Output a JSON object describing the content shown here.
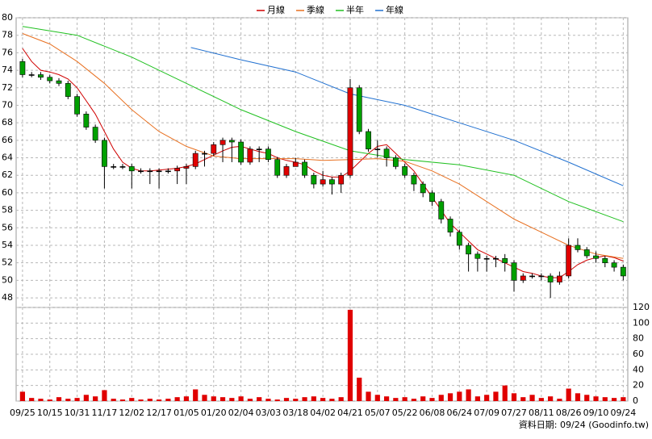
{
  "chart_data": {
    "type": "candlestick",
    "categories": [
      "09/25",
      null,
      null,
      "10/15",
      null,
      null,
      "10/31",
      null,
      null,
      "11/17",
      null,
      null,
      "12/02",
      null,
      null,
      "12/17",
      null,
      null,
      "01/05",
      null,
      null,
      "01/20",
      null,
      null,
      "02/04",
      null,
      null,
      "03/03",
      null,
      null,
      "03/18",
      null,
      null,
      "04/02",
      null,
      null,
      "04/21",
      null,
      null,
      "05/07",
      null,
      null,
      "05/22",
      null,
      null,
      "06/08",
      null,
      null,
      "06/24",
      null,
      null,
      "07/09",
      null,
      null,
      "07/27",
      null,
      null,
      "08/11",
      null,
      null,
      "08/26",
      null,
      null,
      "09/10",
      null,
      null,
      "09/24"
    ],
    "open": [
      75,
      73.5,
      73.5,
      73.2,
      72.8,
      72.5,
      71,
      69,
      67.5,
      66,
      63,
      63,
      63,
      62.5,
      62.5,
      62.5,
      62.5,
      62.5,
      62.8,
      63,
      64.5,
      64.5,
      65.5,
      66,
      65.8,
      63.5,
      65,
      65,
      63.8,
      62,
      63,
      63.5,
      62,
      61,
      61.5,
      61,
      62,
      72,
      67,
      65,
      65,
      64,
      63,
      62,
      61,
      60,
      59,
      57,
      55.5,
      54,
      53,
      52.5,
      52.5,
      52.5,
      52,
      50,
      50.5,
      50.5,
      50.5,
      49.8,
      50.5,
      54,
      53.5,
      52.8,
      52.5,
      52,
      51.5
    ],
    "high": [
      75.3,
      73.8,
      73.8,
      73.5,
      73.1,
      72.8,
      71.3,
      69.3,
      67.8,
      66.3,
      63.3,
      63.3,
      63.3,
      62.8,
      62.8,
      62.8,
      62.8,
      63.1,
      63.3,
      64.8,
      64.8,
      65.8,
      66.3,
      66.3,
      66.1,
      65.3,
      65.3,
      65.3,
      64.1,
      63.3,
      64,
      63.8,
      62.3,
      62.5,
      61.8,
      62.3,
      73,
      72.3,
      67.3,
      66,
      65.3,
      64.3,
      63.3,
      62.3,
      61.3,
      60.3,
      59.3,
      57.3,
      55.8,
      54.3,
      53.3,
      52.8,
      52.8,
      53,
      52.3,
      50.8,
      50.8,
      50.8,
      50.8,
      51,
      54.8,
      54.8,
      53.8,
      53.3,
      52.8,
      52.3,
      51.8
    ],
    "low": [
      73.2,
      73.2,
      72.9,
      72.5,
      72.2,
      70.7,
      68.7,
      67.2,
      65.7,
      60.5,
      62.7,
      62.7,
      60.5,
      62.2,
      61,
      60.5,
      62.2,
      61,
      61,
      62.7,
      63,
      64.2,
      63.5,
      63.5,
      63.2,
      63.2,
      63.5,
      63.5,
      61.7,
      61.7,
      63,
      61.7,
      60.5,
      60.7,
      59.8,
      60,
      61.7,
      66.7,
      64.7,
      64,
      63,
      62.7,
      61.7,
      60.2,
      59.5,
      58.5,
      56.5,
      55,
      53.5,
      51,
      51,
      51,
      51.5,
      51,
      48.7,
      49.7,
      50.2,
      50,
      48,
      49.5,
      50.2,
      53.2,
      52.5,
      52,
      51.5,
      51,
      50
    ],
    "close": [
      73.5,
      73.5,
      73.2,
      72.8,
      72.5,
      71,
      69,
      67.5,
      66,
      63,
      63,
      63,
      62.5,
      62.5,
      62.5,
      62.5,
      62.5,
      62.8,
      63,
      64.5,
      64.5,
      65.5,
      66,
      65.8,
      63.5,
      65,
      65,
      63.8,
      62,
      63,
      63.5,
      62,
      61,
      61.5,
      61,
      62,
      72,
      67,
      65,
      65,
      64,
      63,
      62,
      61,
      60,
      59,
      57,
      55.5,
      54,
      53,
      52.5,
      52.5,
      52.5,
      52,
      50,
      50.5,
      50.5,
      50.5,
      49.8,
      50.5,
      54,
      53.5,
      52.8,
      52.5,
      52,
      51.5,
      50.5
    ],
    "up_color": "#e00000",
    "down_color": "#00a000",
    "xlim": [
      -0.7,
      66.5
    ],
    "ylim": [
      46.9,
      80
    ],
    "yticks": [
      48,
      50,
      52,
      54,
      56,
      58,
      60,
      62,
      64,
      66,
      68,
      70,
      72,
      74,
      76,
      78,
      80
    ],
    "grid": true,
    "legend": "top",
    "lines": [
      {
        "name": "月線",
        "color": "#d00000",
        "x": [
          0,
          1,
          2,
          3,
          4,
          5,
          6,
          7,
          8,
          9,
          10,
          11,
          12,
          13,
          14,
          15,
          16,
          17,
          18,
          19,
          20,
          21,
          22,
          23,
          24,
          25,
          26,
          27,
          28,
          29,
          30,
          31,
          32,
          33,
          34,
          35,
          36,
          37,
          38,
          39,
          40,
          41,
          42,
          43,
          44,
          45,
          46,
          47,
          48,
          49,
          50,
          51,
          52,
          53,
          54,
          55,
          56,
          57,
          58,
          59,
          60,
          61,
          62,
          63,
          64,
          65,
          66
        ],
        "values": [
          76.5,
          75,
          74,
          73.8,
          73.5,
          73,
          72,
          70.5,
          69,
          67,
          65,
          63.5,
          62.8,
          62.5,
          62.5,
          62.6,
          62.7,
          62.8,
          63,
          63.3,
          63.8,
          64.3,
          64.8,
          65.2,
          65.3,
          65,
          64.7,
          64.5,
          64,
          63.7,
          63.5,
          63.2,
          62.5,
          62,
          61.8,
          61.8,
          62.5,
          63.5,
          64.5,
          65.3,
          65.5,
          64.5,
          63.5,
          62.5,
          61,
          59.5,
          58,
          56.5,
          55.5,
          54.5,
          53.5,
          53,
          52.5,
          52,
          51.5,
          51,
          50.8,
          50.5,
          50.3,
          50.3,
          51,
          51.8,
          52.3,
          52.6,
          52.8,
          52.6,
          52.2
        ]
      },
      {
        "name": "季線",
        "color": "#e87020",
        "x": [
          0,
          3,
          6,
          9,
          12,
          15,
          18,
          21,
          24,
          27,
          30,
          33,
          36,
          39,
          42,
          45,
          48,
          51,
          54,
          57,
          60,
          63,
          66
        ],
        "values": [
          78.2,
          77,
          75,
          72.5,
          69.5,
          67,
          65.3,
          64.2,
          63.9,
          63.9,
          63.9,
          63.7,
          63.8,
          63.9,
          63.6,
          62.5,
          61,
          59,
          57,
          55.5,
          54,
          53,
          52.5
        ]
      },
      {
        "name": "半年",
        "color": "#20c020",
        "x": [
          0,
          6,
          12,
          18,
          24,
          30,
          36,
          42,
          48,
          54,
          60,
          66
        ],
        "values": [
          79,
          78,
          75.5,
          72.5,
          69.5,
          67,
          64.8,
          63.8,
          63.2,
          62,
          59,
          56.7
        ]
      },
      {
        "name": "年線",
        "color": "#2070d0",
        "x": [
          18.5,
          24,
          30,
          36,
          42,
          48,
          54,
          60,
          66
        ],
        "values": [
          76.6,
          75.2,
          73.8,
          71.3,
          70,
          68,
          66,
          63.5,
          60.8
        ]
      }
    ],
    "volume": {
      "color": "#e00000",
      "values": [
        12,
        4,
        3,
        2,
        5,
        3,
        4,
        8,
        6,
        14,
        3,
        2,
        4,
        2,
        3,
        2,
        3,
        5,
        6,
        15,
        8,
        6,
        5,
        4,
        6,
        3,
        5,
        3,
        2,
        4,
        3,
        5,
        6,
        4,
        3,
        5,
        117,
        30,
        12,
        8,
        6,
        4,
        5,
        3,
        6,
        4,
        8,
        10,
        12,
        15,
        6,
        8,
        12,
        20,
        10,
        5,
        8,
        4,
        6,
        3,
        16,
        10,
        8,
        6,
        5,
        4,
        5
      ],
      "ylim": [
        0,
        120
      ],
      "yticks": [
        0,
        20,
        40,
        60,
        80,
        100,
        120
      ]
    },
    "source": "資料日期: 09/24 (Goodinfo.tw)"
  }
}
